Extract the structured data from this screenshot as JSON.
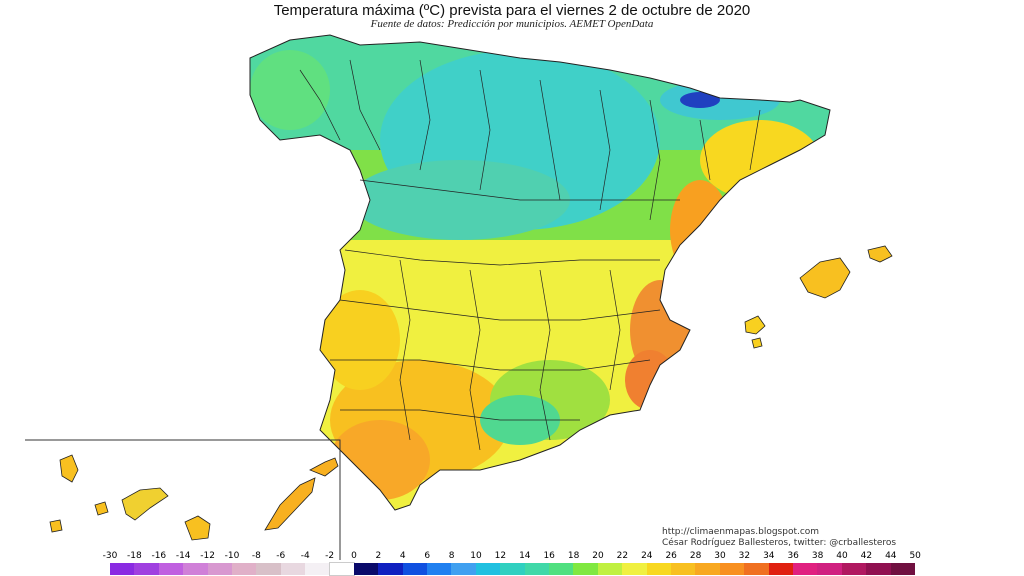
{
  "header": {
    "title": "Temperatura máxima (ºC) prevista para el viernes 2 de octubre de 2020",
    "subtitle": "Fuente de datos: Predicción por municipios. AEMET OpenData"
  },
  "credits": {
    "blog": "http://climaenmapas.blogspot.com",
    "author": "César Rodríguez Ballesteros, twitter: @crballesteros"
  },
  "legend": {
    "labels": [
      "-30",
      "-18",
      "-16",
      "-14",
      "-12",
      "-10",
      "-8",
      "-6",
      "-4",
      "-2",
      "0",
      "2",
      "4",
      "6",
      "8",
      "10",
      "12",
      "14",
      "16",
      "18",
      "20",
      "22",
      "24",
      "26",
      "28",
      "30",
      "32",
      "34",
      "36",
      "38",
      "40",
      "42",
      "44",
      "50"
    ],
    "colors": [
      "#8a2be2",
      "#a040e0",
      "#c060e0",
      "#d080d8",
      "#d898d0",
      "#e0b0c8",
      "#d8c0c8",
      "#e8d8e0",
      "#f4f0f4",
      "#ffffff",
      "#0a0a6a",
      "#1020c0",
      "#1050e0",
      "#2080f0",
      "#40a0f0",
      "#20c0e0",
      "#30d0c0",
      "#40d8a8",
      "#50e080",
      "#80e840",
      "#c0f040",
      "#f0f040",
      "#f8d820",
      "#f8c020",
      "#f8a820",
      "#f89020",
      "#f07020",
      "#e02010",
      "#e02080",
      "#d02080",
      "#b01860",
      "#901050",
      "#701040"
    ]
  },
  "map_colors": {
    "north_cool": "#40d0c8",
    "north_green": "#50d890",
    "center_green": "#80e040",
    "center_yellow": "#f0f040",
    "south_orange": "#f8c020",
    "hot_orange": "#f09030",
    "cold_blue": "#2040c0",
    "border": "#222222"
  }
}
